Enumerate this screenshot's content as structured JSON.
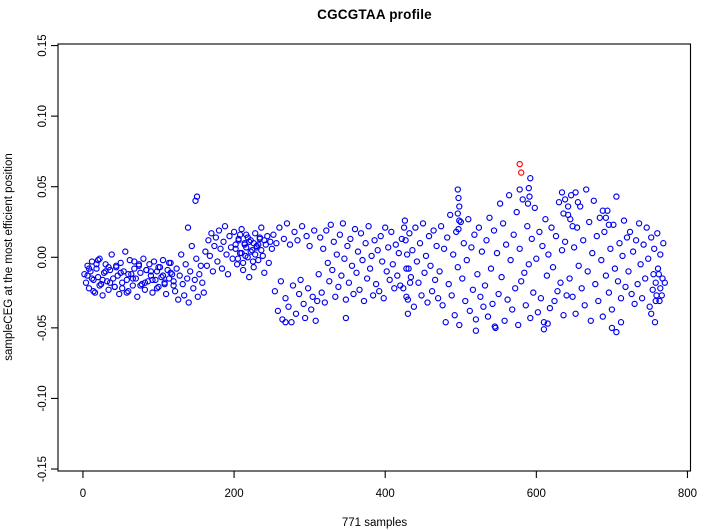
{
  "chart_data": {
    "type": "scatter",
    "title": "CGCGTAA profile",
    "xlabel": "771 samples",
    "ylabel": "sampleCEG at the most efficient position",
    "n_samples": 771,
    "x_ticks": [
      0,
      200,
      400,
      600,
      800
    ],
    "y_tick_labels": [
      "-0.15",
      "-0.10",
      "-0.05",
      "0.00",
      "0.05",
      "0.10",
      "0.15"
    ],
    "xlim": [
      -33,
      804
    ],
    "ylim": [
      -0.1514,
      0.1511
    ],
    "grid": false,
    "legend": null,
    "point_style": "open-circle",
    "colors": {
      "primary": "#0000ee",
      "highlight": "#ff0000",
      "axis": "#000000"
    },
    "series": [
      {
        "name": "samples",
        "color": "#0000ee",
        "runs": [
          {
            "x0": 2,
            "dx": 2,
            "y": [
              -0.012,
              -0.018,
              -0.006,
              -0.022,
              -0.01,
              -0.003,
              -0.016,
              -0.025,
              -0.008,
              -0.014,
              -0.001,
              -0.019,
              -0.027,
              -0.011,
              -0.005,
              -0.017,
              -0.023,
              -0.009,
              0.002,
              -0.015,
              -0.021,
              -0.007,
              -0.013,
              -0.026,
              -0.004,
              -0.018,
              -0.01,
              0.004,
              -0.016,
              -0.024,
              -0.002,
              -0.012,
              -0.02,
              -0.008,
              -0.015,
              -0.028,
              -0.006,
              -0.011,
              -0.019,
              -0.001,
              -0.023,
              -0.009,
              -0.017,
              -0.005,
              -0.013,
              -0.025,
              -0.003,
              -0.016,
              -0.01,
              -0.021,
              -0.007,
              -0.014,
              -0.002,
              -0.018,
              -0.026,
              -0.009,
              -0.015,
              -0.004,
              -0.012,
              -0.02
            ]
          },
          {
            "x0": 122,
            "dx": 2,
            "y": [
              -0.024,
              -0.008,
              -0.03,
              -0.013,
              0.002,
              -0.019,
              -0.027,
              -0.005,
              -0.015,
              -0.032,
              -0.01,
              0.008,
              -0.022,
              -0.016,
              -0.001,
              -0.028,
              -0.012,
              -0.006,
              -0.018,
              -0.025
            ]
          },
          {
            "x0": 162,
            "dx": 2,
            "y": [
              0.004,
              -0.006,
              0.012,
              0.001,
              0.017,
              -0.01,
              0.008,
              0.014,
              -0.003,
              0.019,
              0.006,
              -0.008,
              0.011,
              0.022,
              0.002,
              -0.012,
              0.015,
              0.007,
              -0.001,
              0.018,
              0.009,
              -0.005,
              0.013,
              0.003,
              0.02,
              -0.009,
              0.01,
              0.016,
              0.0,
              -0.014,
              0.012,
              0.005,
              -0.007,
              0.017,
              0.008,
              -0.002,
              0.014,
              0.021,
              0.001,
              -0.011,
              0.009,
              0.015,
              -0.004,
              0.011,
              0.006
            ]
          },
          {
            "x0": 252,
            "dx": 2,
            "y": [
              0.016,
              -0.024,
              0.01,
              -0.038,
              0.021,
              -0.017,
              -0.044,
              0.013,
              -0.029,
              0.024,
              -0.035,
              0.009,
              -0.046,
              -0.02,
              0.018,
              -0.04,
              0.012,
              -0.026,
              -0.016,
              0.022,
              -0.033,
              -0.043,
              0.015,
              -0.022,
              0.008,
              -0.037,
              -0.028,
              0.019,
              -0.045,
              -0.031
            ]
          },
          {
            "x0": 312,
            "dx": 2,
            "y": [
              -0.012,
              0.014,
              -0.025,
              0.006,
              -0.032,
              0.019,
              -0.004,
              -0.017,
              0.023,
              -0.009,
              0.011,
              -0.028,
              0.002,
              -0.021,
              0.016,
              -0.013,
              0.024,
              -0.001,
              -0.03,
              0.008,
              -0.018,
              0.013,
              -0.006,
              -0.026,
              0.02,
              -0.011,
              0.004,
              -0.023,
              0.017,
              -0.002,
              -0.031,
              0.01,
              -0.015,
              0.022,
              -0.008,
              0.001,
              -0.027,
              0.012,
              -0.019,
              0.005,
              -0.024,
              0.015,
              -0.003,
              -0.029,
              0.021,
              -0.01,
              0.007,
              -0.016,
              0.018,
              -0.005,
              -0.022,
              0.009,
              -0.013,
              0.003,
              -0.02
            ]
          },
          {
            "x0": 422,
            "dx": 2,
            "y": [
              0.013,
              -0.022,
              0.026,
              -0.008,
              -0.03,
              0.017,
              -0.014,
              0.005,
              -0.035,
              0.021,
              -0.003,
              -0.018,
              0.01,
              -0.027,
              0.024,
              -0.011,
              0.001,
              -0.032,
              0.015,
              -0.006,
              -0.024,
              0.019,
              -0.016,
              0.008,
              -0.029
            ]
          },
          {
            "x0": 472,
            "dx": 2,
            "y": [
              -0.01,
              0.022,
              -0.034,
              0.006,
              -0.046,
              0.014,
              -0.019,
              0.03,
              -0.027,
              0.002,
              -0.041,
              0.018,
              -0.007,
              -0.048,
              0.025,
              -0.015,
              0.01,
              -0.031,
              -0.002,
              0.027,
              -0.038,
              0.007,
              -0.023,
              0.016,
              -0.044,
              -0.012,
              0.021,
              -0.028,
              0.004,
              -0.035
            ]
          },
          {
            "x0": 532,
            "dx": 2,
            "y": [
              -0.02,
              0.012,
              -0.042,
              0.028,
              -0.008,
              -0.033,
              0.019,
              -0.05,
              0.003,
              -0.026,
              0.038,
              -0.014,
              0.024,
              -0.045,
              0.009,
              -0.03,
              0.044,
              -0.002,
              -0.037,
              0.016,
              -0.022,
              0.032,
              -0.048,
              0.006,
              -0.017,
              0.041,
              -0.011,
              -0.034,
              0.022,
              -0.005,
              -0.043,
              0.013,
              -0.025,
              0.035,
              -0.001,
              -0.039,
              0.018,
              -0.029,
              0.008,
              -0.046,
              0.027,
              -0.013,
              0.002,
              -0.036,
              0.021,
              -0.007,
              -0.031,
              0.015,
              -0.024,
              0.039,
              -0.018,
              0.005,
              -0.041,
              0.011,
              -0.027
            ]
          },
          {
            "x0": 642,
            "dx": 2,
            "y": [
              0.03,
              -0.015,
              0.044,
              -0.028,
              0.007,
              -0.04,
              0.021,
              -0.006,
              0.036,
              -0.022,
              0.012,
              -0.034,
              0.048,
              -0.01,
              0.025,
              -0.045,
              0.003,
              0.04,
              -0.019,
              0.015,
              -0.031,
              0.028,
              -0.002,
              -0.042,
              0.018,
              -0.013,
              0.033,
              -0.025,
              0.006,
              -0.037,
              0.023,
              -0.008,
              0.043,
              -0.017,
              0.01,
              -0.029,
              0.001,
              0.026,
              -0.021,
              0.014
            ]
          },
          {
            "x0": 722,
            "dx": 2,
            "y": [
              -0.01,
              0.018,
              -0.026,
              0.004,
              -0.033,
              0.012,
              -0.019,
              0.024,
              -0.005,
              -0.029,
              0.009,
              -0.015,
              0.021,
              -0.001,
              -0.035,
              0.014,
              -0.023,
              0.006,
              -0.031,
              0.017,
              -0.012,
              0.002,
              -0.027,
              0.01,
              -0.018
            ]
          }
        ],
        "points": [
          [
            6,
            -0.013
          ],
          [
            8,
            -0.008
          ],
          [
            12,
            -0.015
          ],
          [
            14,
            -0.024
          ],
          [
            18,
            -0.005
          ],
          [
            20,
            -0.002
          ],
          [
            22,
            -0.02
          ],
          [
            26,
            -0.016
          ],
          [
            30,
            -0.01
          ],
          [
            34,
            -0.007
          ],
          [
            36,
            -0.018
          ],
          [
            42,
            -0.021
          ],
          [
            44,
            -0.006
          ],
          [
            50,
            -0.011
          ],
          [
            52,
            -0.022
          ],
          [
            58,
            -0.025
          ],
          [
            60,
            -0.012
          ],
          [
            66,
            -0.015
          ],
          [
            68,
            -0.003
          ],
          [
            74,
            -0.005
          ],
          [
            76,
            -0.02
          ],
          [
            82,
            -0.018
          ],
          [
            84,
            -0.009
          ],
          [
            90,
            -0.01
          ],
          [
            92,
            -0.016
          ],
          [
            98,
            -0.022
          ],
          [
            100,
            -0.007
          ],
          [
            106,
            -0.013
          ],
          [
            108,
            -0.019
          ],
          [
            114,
            -0.004
          ],
          [
            116,
            -0.011
          ],
          [
            120,
            -0.017
          ],
          [
            139,
            0.021
          ],
          [
            149,
            0.04
          ],
          [
            151,
            0.043
          ],
          [
            202,
            0.006
          ],
          [
            205,
            -0.001
          ],
          [
            206,
            0.012
          ],
          [
            208,
            0.016
          ],
          [
            210,
            0.003
          ],
          [
            212,
            -0.004
          ],
          [
            214,
            0.009
          ],
          [
            215,
            0.001
          ],
          [
            216,
            0.007
          ],
          [
            218,
            0.014
          ],
          [
            220,
            0.011
          ],
          [
            222,
            0.004
          ],
          [
            225,
            -0.003
          ],
          [
            226,
            0.01
          ],
          [
            228,
            0.002
          ],
          [
            230,
            0.007
          ],
          [
            232,
            0.009
          ],
          [
            234,
            0.013
          ],
          [
            236,
            0.005
          ],
          [
            240,
            0.012
          ],
          [
            425,
            0.021
          ],
          [
            427,
            0.012
          ],
          [
            428,
            -0.028
          ],
          [
            429,
            0.002
          ],
          [
            431,
            -0.008
          ],
          [
            433,
            -0.018
          ],
          [
            496,
            0.048
          ],
          [
            496,
            0.031
          ],
          [
            497,
            0.042
          ],
          [
            497,
            0.02
          ],
          [
            498,
            0.036
          ],
          [
            498,
            0.026
          ],
          [
            578,
            0.048
          ],
          [
            589,
            0.038
          ],
          [
            590,
            0.049
          ],
          [
            591,
            0.043
          ],
          [
            592,
            0.056
          ],
          [
            634,
            0.046
          ],
          [
            636,
            0.031
          ],
          [
            638,
            0.041
          ],
          [
            642,
            0.036
          ],
          [
            645,
            0.027
          ],
          [
            648,
            0.022
          ],
          [
            652,
            0.046
          ],
          [
            655,
            0.039
          ],
          [
            688,
            0.033
          ],
          [
            692,
            0.028
          ],
          [
            696,
            0.023
          ],
          [
            268,
            -0.046
          ],
          [
            348,
            -0.043
          ],
          [
            430,
            -0.04
          ],
          [
            520,
            -0.052
          ],
          [
            545,
            -0.049
          ],
          [
            610,
            -0.051
          ],
          [
            615,
            -0.047
          ],
          [
            700,
            -0.05
          ],
          [
            706,
            -0.053
          ],
          [
            712,
            -0.046
          ],
          [
            752,
            -0.04
          ],
          [
            757,
            -0.046
          ],
          [
            755,
            -0.012
          ],
          [
            758,
            -0.018
          ],
          [
            759,
            -0.027
          ],
          [
            761,
            -0.008
          ],
          [
            763,
            -0.031
          ],
          [
            764,
            -0.022
          ],
          [
            767,
            -0.015
          ]
        ]
      },
      {
        "name": "highlighted",
        "color": "#ff0000",
        "runs": [],
        "points": [
          [
            578,
            0.066
          ],
          [
            580,
            0.06
          ]
        ]
      }
    ]
  }
}
